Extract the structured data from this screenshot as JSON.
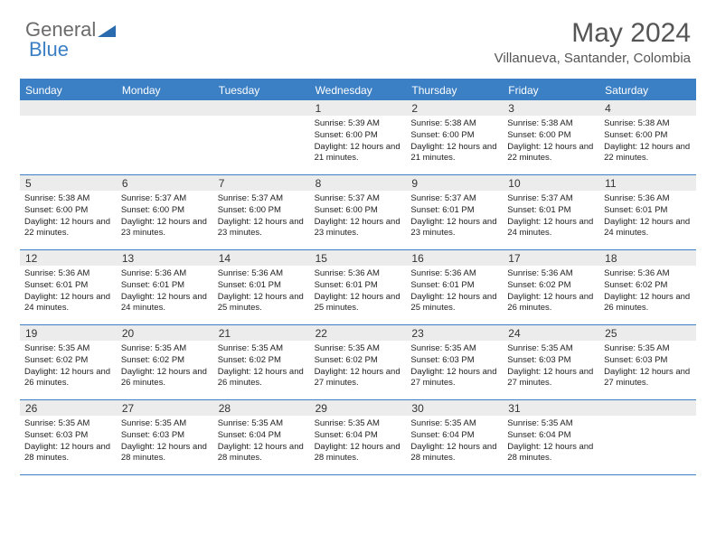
{
  "brand": {
    "part1": "General",
    "part2": "Blue"
  },
  "title": "May 2024",
  "location": "Villanueva, Santander, Colombia",
  "colors": {
    "accent": "#3b7fc4",
    "header_bg": "#3b7fc4",
    "daynum_bg": "#ececec",
    "text": "#222222",
    "title_text": "#555555"
  },
  "weekdays": [
    "Sunday",
    "Monday",
    "Tuesday",
    "Wednesday",
    "Thursday",
    "Friday",
    "Saturday"
  ],
  "weeks": [
    [
      {
        "n": "",
        "sr": "",
        "ss": "",
        "dl": ""
      },
      {
        "n": "",
        "sr": "",
        "ss": "",
        "dl": ""
      },
      {
        "n": "",
        "sr": "",
        "ss": "",
        "dl": ""
      },
      {
        "n": "1",
        "sr": "Sunrise: 5:39 AM",
        "ss": "Sunset: 6:00 PM",
        "dl": "Daylight: 12 hours and 21 minutes."
      },
      {
        "n": "2",
        "sr": "Sunrise: 5:38 AM",
        "ss": "Sunset: 6:00 PM",
        "dl": "Daylight: 12 hours and 21 minutes."
      },
      {
        "n": "3",
        "sr": "Sunrise: 5:38 AM",
        "ss": "Sunset: 6:00 PM",
        "dl": "Daylight: 12 hours and 22 minutes."
      },
      {
        "n": "4",
        "sr": "Sunrise: 5:38 AM",
        "ss": "Sunset: 6:00 PM",
        "dl": "Daylight: 12 hours and 22 minutes."
      }
    ],
    [
      {
        "n": "5",
        "sr": "Sunrise: 5:38 AM",
        "ss": "Sunset: 6:00 PM",
        "dl": "Daylight: 12 hours and 22 minutes."
      },
      {
        "n": "6",
        "sr": "Sunrise: 5:37 AM",
        "ss": "Sunset: 6:00 PM",
        "dl": "Daylight: 12 hours and 23 minutes."
      },
      {
        "n": "7",
        "sr": "Sunrise: 5:37 AM",
        "ss": "Sunset: 6:00 PM",
        "dl": "Daylight: 12 hours and 23 minutes."
      },
      {
        "n": "8",
        "sr": "Sunrise: 5:37 AM",
        "ss": "Sunset: 6:00 PM",
        "dl": "Daylight: 12 hours and 23 minutes."
      },
      {
        "n": "9",
        "sr": "Sunrise: 5:37 AM",
        "ss": "Sunset: 6:01 PM",
        "dl": "Daylight: 12 hours and 23 minutes."
      },
      {
        "n": "10",
        "sr": "Sunrise: 5:37 AM",
        "ss": "Sunset: 6:01 PM",
        "dl": "Daylight: 12 hours and 24 minutes."
      },
      {
        "n": "11",
        "sr": "Sunrise: 5:36 AM",
        "ss": "Sunset: 6:01 PM",
        "dl": "Daylight: 12 hours and 24 minutes."
      }
    ],
    [
      {
        "n": "12",
        "sr": "Sunrise: 5:36 AM",
        "ss": "Sunset: 6:01 PM",
        "dl": "Daylight: 12 hours and 24 minutes."
      },
      {
        "n": "13",
        "sr": "Sunrise: 5:36 AM",
        "ss": "Sunset: 6:01 PM",
        "dl": "Daylight: 12 hours and 24 minutes."
      },
      {
        "n": "14",
        "sr": "Sunrise: 5:36 AM",
        "ss": "Sunset: 6:01 PM",
        "dl": "Daylight: 12 hours and 25 minutes."
      },
      {
        "n": "15",
        "sr": "Sunrise: 5:36 AM",
        "ss": "Sunset: 6:01 PM",
        "dl": "Daylight: 12 hours and 25 minutes."
      },
      {
        "n": "16",
        "sr": "Sunrise: 5:36 AM",
        "ss": "Sunset: 6:01 PM",
        "dl": "Daylight: 12 hours and 25 minutes."
      },
      {
        "n": "17",
        "sr": "Sunrise: 5:36 AM",
        "ss": "Sunset: 6:02 PM",
        "dl": "Daylight: 12 hours and 26 minutes."
      },
      {
        "n": "18",
        "sr": "Sunrise: 5:36 AM",
        "ss": "Sunset: 6:02 PM",
        "dl": "Daylight: 12 hours and 26 minutes."
      }
    ],
    [
      {
        "n": "19",
        "sr": "Sunrise: 5:35 AM",
        "ss": "Sunset: 6:02 PM",
        "dl": "Daylight: 12 hours and 26 minutes."
      },
      {
        "n": "20",
        "sr": "Sunrise: 5:35 AM",
        "ss": "Sunset: 6:02 PM",
        "dl": "Daylight: 12 hours and 26 minutes."
      },
      {
        "n": "21",
        "sr": "Sunrise: 5:35 AM",
        "ss": "Sunset: 6:02 PM",
        "dl": "Daylight: 12 hours and 26 minutes."
      },
      {
        "n": "22",
        "sr": "Sunrise: 5:35 AM",
        "ss": "Sunset: 6:02 PM",
        "dl": "Daylight: 12 hours and 27 minutes."
      },
      {
        "n": "23",
        "sr": "Sunrise: 5:35 AM",
        "ss": "Sunset: 6:03 PM",
        "dl": "Daylight: 12 hours and 27 minutes."
      },
      {
        "n": "24",
        "sr": "Sunrise: 5:35 AM",
        "ss": "Sunset: 6:03 PM",
        "dl": "Daylight: 12 hours and 27 minutes."
      },
      {
        "n": "25",
        "sr": "Sunrise: 5:35 AM",
        "ss": "Sunset: 6:03 PM",
        "dl": "Daylight: 12 hours and 27 minutes."
      }
    ],
    [
      {
        "n": "26",
        "sr": "Sunrise: 5:35 AM",
        "ss": "Sunset: 6:03 PM",
        "dl": "Daylight: 12 hours and 28 minutes."
      },
      {
        "n": "27",
        "sr": "Sunrise: 5:35 AM",
        "ss": "Sunset: 6:03 PM",
        "dl": "Daylight: 12 hours and 28 minutes."
      },
      {
        "n": "28",
        "sr": "Sunrise: 5:35 AM",
        "ss": "Sunset: 6:04 PM",
        "dl": "Daylight: 12 hours and 28 minutes."
      },
      {
        "n": "29",
        "sr": "Sunrise: 5:35 AM",
        "ss": "Sunset: 6:04 PM",
        "dl": "Daylight: 12 hours and 28 minutes."
      },
      {
        "n": "30",
        "sr": "Sunrise: 5:35 AM",
        "ss": "Sunset: 6:04 PM",
        "dl": "Daylight: 12 hours and 28 minutes."
      },
      {
        "n": "31",
        "sr": "Sunrise: 5:35 AM",
        "ss": "Sunset: 6:04 PM",
        "dl": "Daylight: 12 hours and 28 minutes."
      },
      {
        "n": "",
        "sr": "",
        "ss": "",
        "dl": ""
      }
    ]
  ]
}
